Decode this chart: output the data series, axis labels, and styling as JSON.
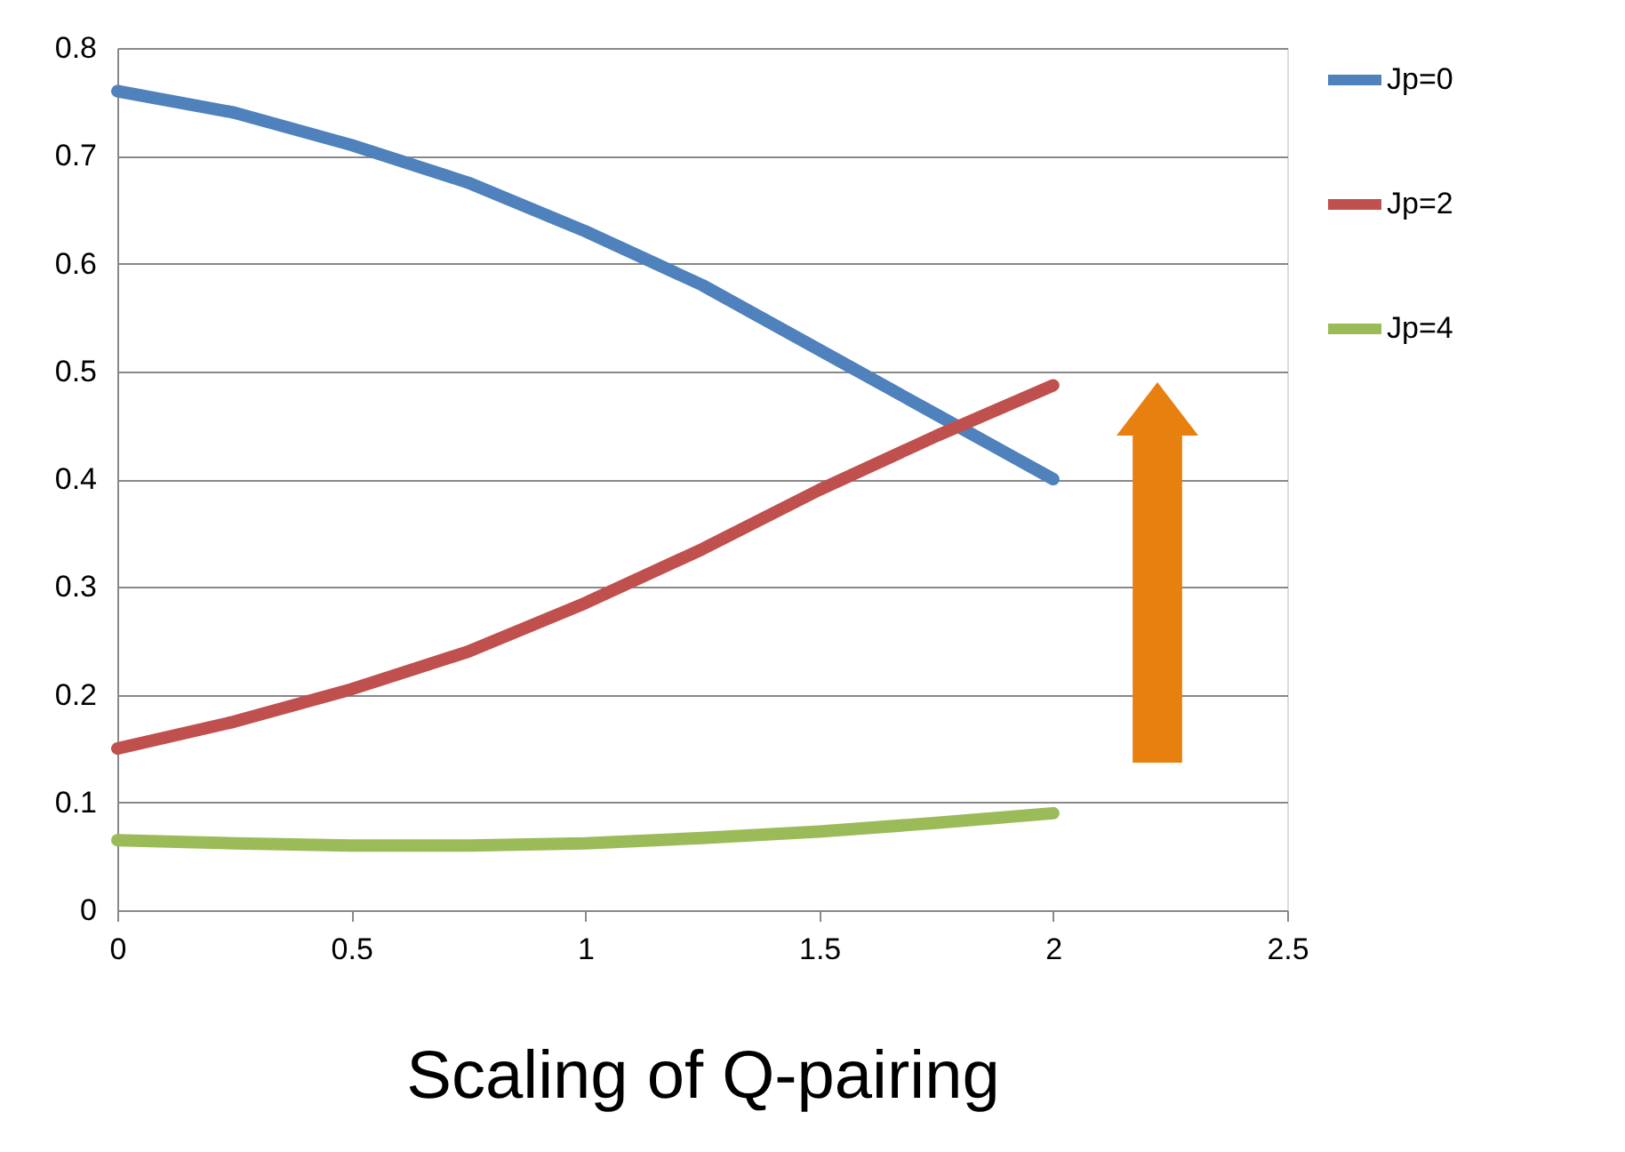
{
  "chart_data": {
    "type": "line",
    "xlabel": "Scaling of Q-pairing",
    "x": [
      0,
      0.25,
      0.5,
      0.75,
      1,
      1.25,
      1.5,
      1.75,
      2
    ],
    "series": [
      {
        "name": "Jp=0",
        "color": "#4f81bd",
        "values": [
          0.76,
          0.74,
          0.71,
          0.675,
          0.63,
          0.58,
          0.52,
          0.46,
          0.4
        ]
      },
      {
        "name": "Jp=2",
        "color": "#c0504d",
        "values": [
          0.15,
          0.175,
          0.205,
          0.24,
          0.285,
          0.335,
          0.39,
          0.44,
          0.487
        ]
      },
      {
        "name": "Jp=4",
        "color": "#9bbb59",
        "values": [
          0.065,
          0.062,
          0.06,
          0.06,
          0.062,
          0.067,
          0.073,
          0.081,
          0.09
        ]
      }
    ],
    "xlim": [
      0,
      2.5
    ],
    "xticks": [
      0,
      0.5,
      1,
      1.5,
      2,
      2.5
    ],
    "ylim": [
      0,
      0.8
    ],
    "yticks": [
      0,
      0.1,
      0.2,
      0.3,
      0.4,
      0.5,
      0.6,
      0.7,
      0.8
    ],
    "grid": "y",
    "legend": "right",
    "line_style": "solid"
  }
}
